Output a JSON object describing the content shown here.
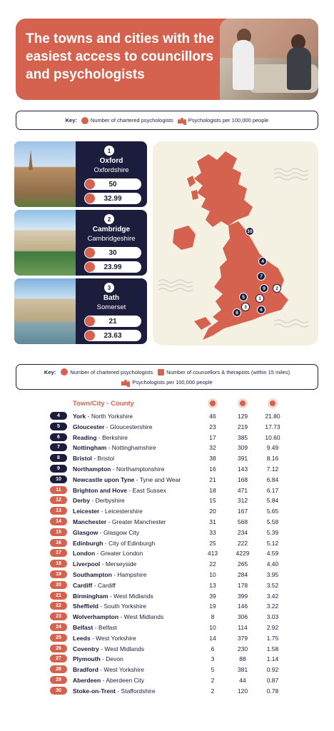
{
  "header": {
    "title": "The towns and cities with the easiest access to councillors and psychologists"
  },
  "key1": {
    "label": "Key:",
    "psychologists": "Number of chartered psychologists",
    "per100k": "Psychologists per 100,000 people"
  },
  "top3": [
    {
      "rank": "1",
      "city": "Oxford",
      "county": "Oxfordshire",
      "psychologists": "50",
      "per100k": "32.99"
    },
    {
      "rank": "2",
      "city": "Cambridge",
      "county": "Cambridgeshire",
      "psychologists": "30",
      "per100k": "23.99"
    },
    {
      "rank": "3",
      "city": "Bath",
      "county": "Somerset",
      "psychologists": "21",
      "per100k": "23.63"
    }
  ],
  "map_markers": [
    "1",
    "2",
    "3",
    "4",
    "6",
    "7",
    "8",
    "9",
    "10",
    "5"
  ],
  "key2": {
    "label": "Key:",
    "psychologists": "Number of chartered psychologists",
    "counsellors": "Number of counsellors & therapists (within 15 miles)",
    "per100k": "Psychologists per 100,000 people"
  },
  "table": {
    "header": "Town/City - County",
    "rows": [
      {
        "rank": "4",
        "town": "York",
        "county": "North Yorkshire",
        "psy": "46",
        "coun": "129",
        "per": "21.80"
      },
      {
        "rank": "5",
        "town": "Gloucester",
        "county": "Gloucestershire",
        "psy": "23",
        "coun": "219",
        "per": "17.73"
      },
      {
        "rank": "6",
        "town": "Reading",
        "county": "Berkshire",
        "psy": "17",
        "coun": "385",
        "per": "10.60"
      },
      {
        "rank": "7",
        "town": "Nottingham",
        "county": "Nottinghamshire",
        "psy": "32",
        "coun": "309",
        "per": "9.49"
      },
      {
        "rank": "8",
        "town": "Bristol",
        "county": "Bristol",
        "psy": "38",
        "coun": "391",
        "per": "8.16"
      },
      {
        "rank": "9",
        "town": "Northampton",
        "county": "Northamptonshire",
        "psy": "16",
        "coun": "143",
        "per": "7.12"
      },
      {
        "rank": "10",
        "town": "Newcastle upon Tyne",
        "county": "Tyne and Wear",
        "psy": "21",
        "coun": "168",
        "per": "6.84"
      },
      {
        "rank": "11",
        "town": "Brighton and Hove",
        "county": "East Sussex",
        "psy": "18",
        "coun": "471",
        "per": "6.17"
      },
      {
        "rank": "12",
        "town": "Derby",
        "county": "Derbyshire",
        "psy": "15",
        "coun": "312",
        "per": "5.84"
      },
      {
        "rank": "13",
        "town": "Leicester",
        "county": "Leicestershire",
        "psy": "20",
        "coun": "167",
        "per": "5.65"
      },
      {
        "rank": "14",
        "town": "Manchester",
        "county": "Greater Manchester",
        "psy": "31",
        "coun": "568",
        "per": "5.58"
      },
      {
        "rank": "15",
        "town": "Glasgow",
        "county": "Glasgow City",
        "psy": "33",
        "coun": "234",
        "per": "5.39"
      },
      {
        "rank": "16",
        "town": "Edinburgh",
        "county": "City of Edinburgh",
        "psy": "25",
        "coun": "222",
        "per": "5.12"
      },
      {
        "rank": "17",
        "town": "London",
        "county": "Greater London",
        "psy": "413",
        "coun": "4229",
        "per": "4.59"
      },
      {
        "rank": "18",
        "town": "Liverpool",
        "county": "Merseyside",
        "psy": "22",
        "coun": "265",
        "per": "4.40"
      },
      {
        "rank": "19",
        "town": "Southampton",
        "county": "Hampshire",
        "psy": "10",
        "coun": "284",
        "per": "3.95"
      },
      {
        "rank": "20",
        "town": "Cardiff",
        "county": "Cardiff",
        "psy": "13",
        "coun": "178",
        "per": "3.52"
      },
      {
        "rank": "21",
        "town": "Birmingham",
        "county": "West Midlands",
        "psy": "39",
        "coun": "399",
        "per": "3.42"
      },
      {
        "rank": "22",
        "town": "Sheffield",
        "county": "South Yorkshire",
        "psy": "19",
        "coun": "146",
        "per": "3.22"
      },
      {
        "rank": "23",
        "town": "Wolverhampton",
        "county": "West Midlands",
        "psy": "8",
        "coun": "306",
        "per": "3.03"
      },
      {
        "rank": "24",
        "town": "Belfast",
        "county": "Belfast",
        "psy": "10",
        "coun": "114",
        "per": "2.92"
      },
      {
        "rank": "25",
        "town": "Leeds",
        "county": "West Yorkshire",
        "psy": "14",
        "coun": "379",
        "per": "1.75"
      },
      {
        "rank": "26",
        "town": "Coventry",
        "county": "West Midlands",
        "psy": "6",
        "coun": "230",
        "per": "1.58"
      },
      {
        "rank": "27",
        "town": "Plymouth",
        "county": "Devon",
        "psy": "3",
        "coun": "88",
        "per": "1.14"
      },
      {
        "rank": "28",
        "town": "Bradford",
        "county": "West Yorkshire",
        "psy": "5",
        "coun": "381",
        "per": "0.92"
      },
      {
        "rank": "29",
        "town": "Aberdeen",
        "county": "Aberdeen City",
        "psy": "2",
        "coun": "44",
        "per": "0.87"
      },
      {
        "rank": "30",
        "town": "Stoke-on-Trent",
        "county": "Staffordshire",
        "psy": "2",
        "coun": "120",
        "per": "0.78"
      }
    ]
  },
  "colors": {
    "accent": "#d5624e",
    "navy": "#1c1c3c",
    "map_bg": "#f5f1e2"
  }
}
